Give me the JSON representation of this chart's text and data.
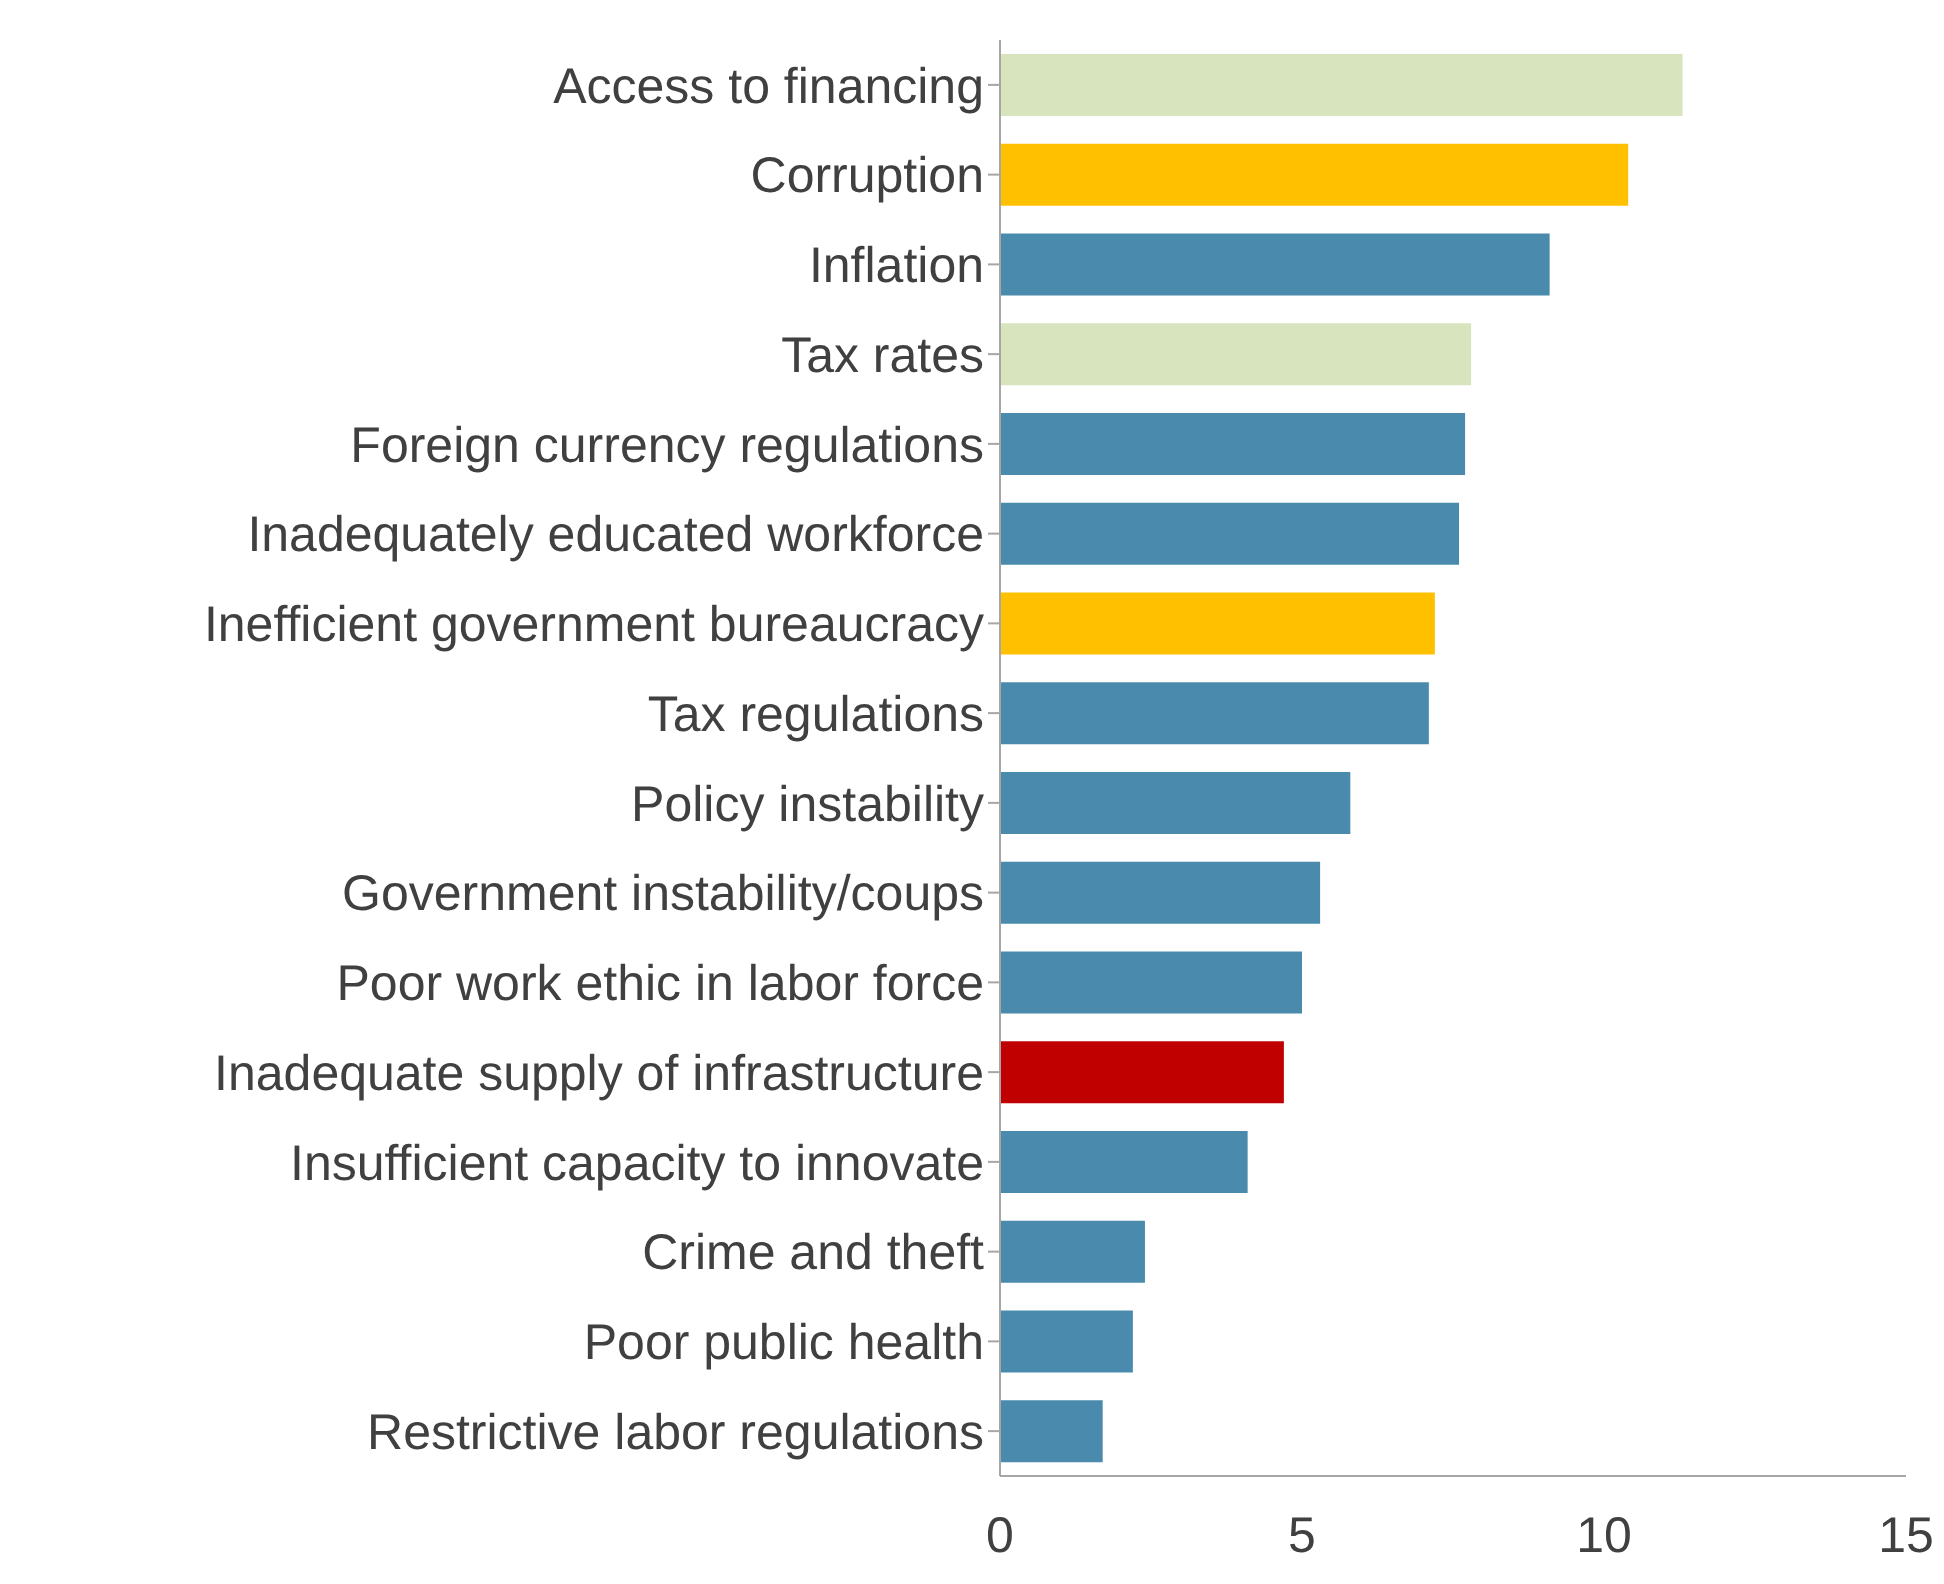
{
  "chart_data": {
    "type": "bar",
    "orientation": "horizontal",
    "categories": [
      "Access to financing",
      "Corruption",
      "Inflation",
      "Tax rates",
      "Foreign currency regulations",
      "Inadequately educated workforce",
      "Inefficient government bureaucracy",
      "Tax regulations",
      "Policy instability",
      "Government instability/coups",
      "Poor work ethic in labor force",
      "Inadequate supply of infrastructure",
      "Insufficient capacity to innovate",
      "Crime and theft",
      "Poor public health",
      "Restrictive labor regulations"
    ],
    "values": [
      11.3,
      10.4,
      9.1,
      7.8,
      7.7,
      7.6,
      7.2,
      7.1,
      5.8,
      5.3,
      5.0,
      4.7,
      4.1,
      2.4,
      2.2,
      1.7
    ],
    "colors": [
      "#d7e4bd",
      "#ffc000",
      "#4a8bad",
      "#d7e4bd",
      "#4a8bad",
      "#4a8bad",
      "#ffc000",
      "#4a8bad",
      "#4a8bad",
      "#4a8bad",
      "#4a8bad",
      "#c00000",
      "#4a8bad",
      "#4a8bad",
      "#4a8bad",
      "#4a8bad"
    ],
    "xlim": [
      0,
      15
    ],
    "xticks": [
      0,
      5,
      10,
      15
    ],
    "grid": false,
    "legend": false
  }
}
